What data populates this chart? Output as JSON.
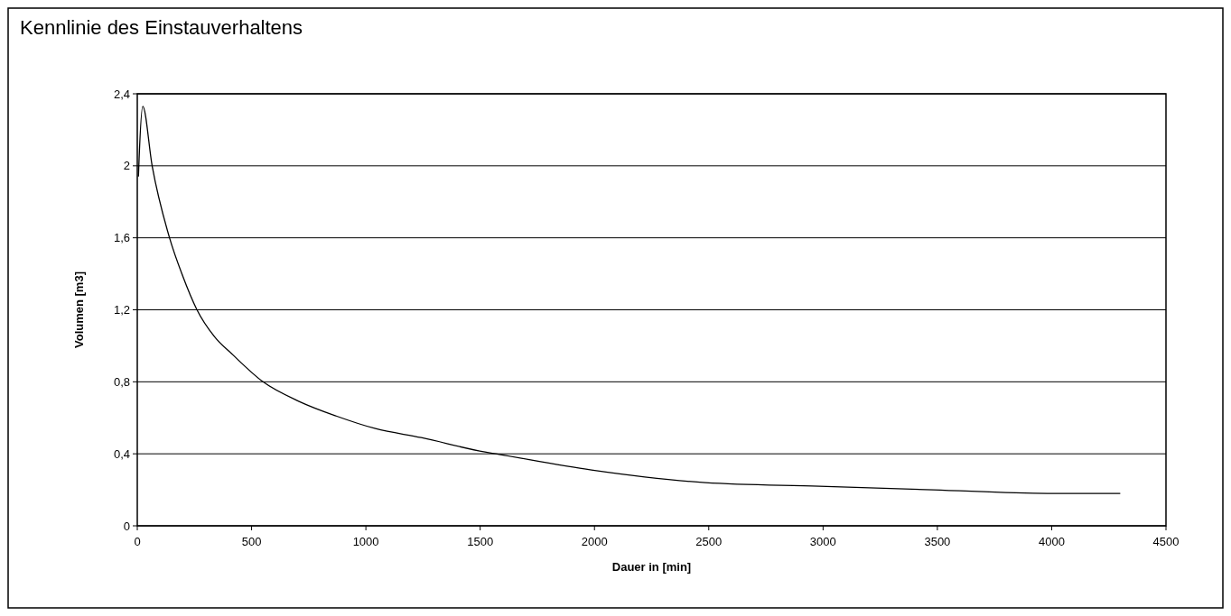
{
  "chart_data": {
    "type": "line",
    "title": "Kennlinie des Einstauverhaltens",
    "xlabel": "Dauer in [min]",
    "ylabel": "Volumen [m3]",
    "x": [
      5,
      8,
      24,
      65,
      141,
      198,
      261,
      338,
      418,
      550,
      710,
      870,
      1042,
      1242,
      1521,
      1568,
      1987,
      2485,
      2984,
      3482,
      3981,
      4300
    ],
    "series": [
      {
        "color": "#000000",
        "values": [
          1.94,
          2.04,
          2.33,
          2.0,
          1.6,
          1.39,
          1.2,
          1.05,
          0.95,
          0.8,
          0.69,
          0.61,
          0.54,
          0.49,
          0.41,
          0.4,
          0.31,
          0.24,
          0.22,
          0.2,
          0.18,
          0.18
        ]
      }
    ],
    "xlim": [
      0,
      4500
    ],
    "xticks": [
      0,
      500,
      1000,
      1500,
      2000,
      2500,
      3000,
      3500,
      4000,
      4500
    ],
    "ylim": [
      0,
      2.4
    ],
    "yticks": [
      0,
      {
        "value": 0.4,
        "label": "0,4"
      },
      {
        "value": 0.8,
        "label": "0,8"
      },
      {
        "value": 1.2,
        "label": "1,2"
      },
      {
        "value": 1.6,
        "label": "1,6"
      },
      2,
      {
        "value": 2.4,
        "label": "2,4"
      }
    ],
    "grid": "y",
    "marker": "none",
    "line_style": "solid"
  }
}
